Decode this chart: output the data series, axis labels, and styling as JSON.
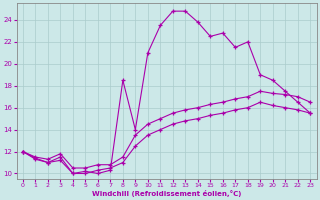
{
  "xlabel": "Windchill (Refroidissement éolien,°C)",
  "background_color": "#cce8e8",
  "grid_color": "#aacccc",
  "line_color": "#aa00aa",
  "xlim": [
    -0.5,
    23.5
  ],
  "ylim": [
    9.5,
    25.5
  ],
  "xticks": [
    0,
    1,
    2,
    3,
    4,
    5,
    6,
    7,
    8,
    9,
    10,
    11,
    12,
    13,
    14,
    15,
    16,
    17,
    18,
    19,
    20,
    21,
    22,
    23
  ],
  "yticks": [
    10,
    12,
    14,
    16,
    18,
    20,
    22,
    24
  ],
  "curve_peak_x": [
    0,
    1,
    2,
    3,
    4,
    5,
    6,
    7,
    8,
    9,
    10,
    11,
    12,
    13,
    14,
    15,
    16,
    17,
    18,
    19,
    20,
    21,
    22,
    23
  ],
  "curve_peak_y": [
    12.0,
    11.4,
    11.0,
    11.5,
    10.0,
    10.2,
    10.0,
    10.3,
    18.5,
    14.0,
    21.0,
    23.5,
    24.8,
    24.8,
    23.8,
    22.5,
    22.8,
    21.5,
    22.0,
    19.0,
    18.5,
    17.5,
    16.5,
    15.5
  ],
  "curve_upper_x": [
    0,
    1,
    2,
    3,
    4,
    5,
    6,
    7,
    8,
    9,
    10,
    11,
    12,
    13,
    14,
    15,
    16,
    17,
    18,
    19,
    20,
    21,
    22,
    23
  ],
  "curve_upper_y": [
    12.0,
    11.5,
    11.3,
    11.8,
    10.5,
    10.5,
    10.8,
    10.8,
    11.5,
    13.5,
    14.5,
    15.0,
    15.5,
    15.8,
    16.0,
    16.3,
    16.5,
    16.8,
    17.0,
    17.5,
    17.3,
    17.2,
    17.0,
    16.5
  ],
  "curve_lower_x": [
    0,
    1,
    2,
    3,
    4,
    5,
    6,
    7,
    8,
    9,
    10,
    11,
    12,
    13,
    14,
    15,
    16,
    17,
    18,
    19,
    20,
    21,
    22,
    23
  ],
  "curve_lower_y": [
    12.0,
    11.3,
    11.0,
    11.2,
    10.0,
    10.0,
    10.3,
    10.5,
    11.0,
    12.5,
    13.5,
    14.0,
    14.5,
    14.8,
    15.0,
    15.3,
    15.5,
    15.8,
    16.0,
    16.5,
    16.2,
    16.0,
    15.8,
    15.5
  ]
}
